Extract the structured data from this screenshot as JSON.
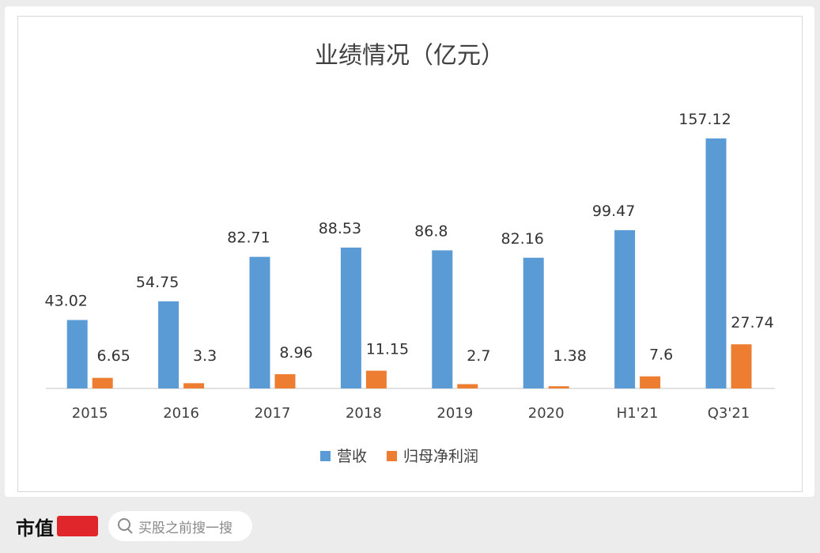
{
  "chart_data": {
    "type": "bar",
    "title": "业绩情况（亿元）",
    "categories": [
      "2015",
      "2016",
      "2017",
      "2018",
      "2019",
      "2020",
      "H1'21",
      "Q3'21"
    ],
    "series": [
      {
        "name": "营收",
        "values": [
          43.02,
          54.75,
          82.71,
          88.53,
          86.8,
          82.16,
          99.47,
          157.12
        ],
        "color": "#5b9bd5"
      },
      {
        "name": "归母净利润",
        "values": [
          6.65,
          3.3,
          8.96,
          11.15,
          2.7,
          1.38,
          7.6,
          27.74
        ],
        "color": "#ed7d31"
      }
    ],
    "value_labels": [
      [
        "43.02",
        "54.75",
        "82.71",
        "88.53",
        "86.8",
        "82.16",
        "99.47",
        "157.12"
      ],
      [
        "6.65",
        "3.3",
        "8.96",
        "11.15",
        "2.7",
        "1.38",
        "7.6",
        "27.74"
      ]
    ],
    "ylim": [
      0,
      160
    ],
    "grid": false,
    "legend": "bottom"
  },
  "footer": {
    "brand": "市值",
    "search_placeholder": "买股之前搜一搜"
  }
}
